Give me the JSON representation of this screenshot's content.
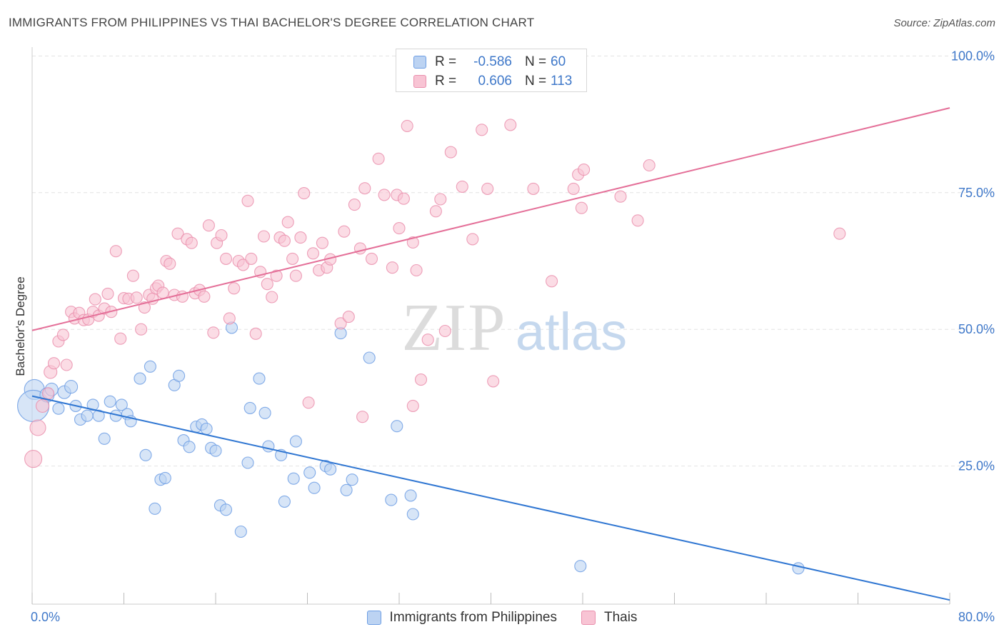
{
  "title": "IMMIGRANTS FROM PHILIPPINES VS THAI BACHELOR'S DEGREE CORRELATION CHART",
  "source": "Source: ZipAtlas.com",
  "watermark": {
    "zip": "ZIP",
    "atlas": "atlas"
  },
  "colors": {
    "blue_fill": "#bcd3f2",
    "blue_stroke": "#6d9ee4",
    "blue_line": "#2f76d2",
    "pink_fill": "#f8c4d4",
    "pink_stroke": "#ea8fad",
    "pink_line": "#e46f98",
    "axis_text": "#3f78c9",
    "grid": "#e2e2e2"
  },
  "legend_top": {
    "rows": [
      {
        "r_label": "R =",
        "r_value": "-0.586",
        "n_label": "N =",
        "n_value": "60"
      },
      {
        "r_label": "R =",
        "r_value": "0.606",
        "n_label": "N =",
        "n_value": "113"
      }
    ]
  },
  "legend_bottom": {
    "items": [
      {
        "label": "Immigrants from Philippines"
      },
      {
        "label": "Thais"
      }
    ]
  },
  "chart_data": {
    "type": "scatter",
    "xlabel": "",
    "ylabel": "Bachelor's Degree",
    "xlim": [
      0,
      80
    ],
    "ylim": [
      0,
      105
    ],
    "x_tick_labels": [
      {
        "value": 0,
        "label": "0.0%"
      },
      {
        "value": 80,
        "label": "80.0%"
      }
    ],
    "y_tick_labels": [
      {
        "value": 25,
        "label": "25.0%"
      },
      {
        "value": 50,
        "label": "50.0%"
      },
      {
        "value": 75,
        "label": "75.0%"
      },
      {
        "value": 100,
        "label": "100.0%"
      }
    ],
    "grid": true,
    "legend_position": "top-center",
    "series": [
      {
        "name": "Immigrants from Philippines",
        "color": "#6d9ee4",
        "trend": {
          "x": [
            0,
            80
          ],
          "y": [
            37.8,
            0.5
          ]
        },
        "points": [
          [
            0.2,
            39.0,
            14
          ],
          [
            0.1,
            36.0,
            22
          ],
          [
            1.3,
            38.0,
            10
          ],
          [
            1.7,
            39.0,
            9
          ],
          [
            2.3,
            35.5,
            8
          ],
          [
            2.8,
            38.5,
            9
          ],
          [
            3.4,
            39.5,
            9
          ],
          [
            3.8,
            36.0,
            8
          ],
          [
            4.2,
            33.5,
            8
          ],
          [
            4.8,
            34.2,
            8
          ],
          [
            5.3,
            36.2,
            8
          ],
          [
            5.8,
            34.2,
            8
          ],
          [
            6.3,
            30.0,
            8
          ],
          [
            6.8,
            36.8,
            8
          ],
          [
            7.3,
            34.2,
            8
          ],
          [
            7.8,
            36.2,
            8
          ],
          [
            8.3,
            34.5,
            8
          ],
          [
            8.6,
            33.2,
            8
          ],
          [
            9.4,
            41.0,
            8
          ],
          [
            9.9,
            27.0,
            8
          ],
          [
            10.3,
            43.2,
            8
          ],
          [
            10.7,
            17.2,
            8
          ],
          [
            11.2,
            22.5,
            8
          ],
          [
            11.6,
            22.8,
            8
          ],
          [
            12.4,
            39.8,
            8
          ],
          [
            12.8,
            41.5,
            8
          ],
          [
            13.2,
            29.7,
            8
          ],
          [
            13.7,
            28.5,
            8
          ],
          [
            14.3,
            32.2,
            8
          ],
          [
            14.8,
            32.6,
            8
          ],
          [
            15.2,
            31.8,
            8
          ],
          [
            15.6,
            28.3,
            8
          ],
          [
            16.0,
            27.8,
            8
          ],
          [
            16.4,
            17.8,
            8
          ],
          [
            16.9,
            17.0,
            8
          ],
          [
            17.4,
            50.3,
            8
          ],
          [
            18.2,
            13.0,
            8
          ],
          [
            18.8,
            25.6,
            8
          ],
          [
            19.0,
            35.6,
            8
          ],
          [
            19.8,
            41.0,
            8
          ],
          [
            20.3,
            34.7,
            8
          ],
          [
            20.6,
            28.6,
            8
          ],
          [
            21.7,
            27.0,
            8
          ],
          [
            22.0,
            18.5,
            8
          ],
          [
            22.8,
            22.7,
            8
          ],
          [
            23.0,
            29.5,
            8
          ],
          [
            24.2,
            23.8,
            8
          ],
          [
            24.6,
            21.0,
            8
          ],
          [
            25.6,
            25.0,
            8
          ],
          [
            26.0,
            24.4,
            8
          ],
          [
            26.9,
            49.3,
            8
          ],
          [
            27.4,
            20.6,
            8
          ],
          [
            27.9,
            22.5,
            8
          ],
          [
            29.4,
            44.8,
            8
          ],
          [
            31.3,
            18.8,
            8
          ],
          [
            31.8,
            32.3,
            8
          ],
          [
            33.0,
            19.6,
            8
          ],
          [
            33.2,
            16.2,
            8
          ],
          [
            47.8,
            6.7,
            8
          ],
          [
            66.8,
            6.3,
            8
          ]
        ]
      },
      {
        "name": "Thais",
        "color": "#ea8fad",
        "trend": {
          "x": [
            0,
            80
          ],
          "y": [
            49.8,
            90.5
          ]
        },
        "points": [
          [
            0.1,
            26.3,
            12
          ],
          [
            0.5,
            32.0,
            11
          ],
          [
            0.9,
            36.0,
            9
          ],
          [
            1.4,
            38.3,
            8
          ],
          [
            1.6,
            42.2,
            9
          ],
          [
            1.9,
            43.8,
            8
          ],
          [
            2.3,
            47.8,
            8
          ],
          [
            2.7,
            49.0,
            8
          ],
          [
            3.0,
            43.5,
            8
          ],
          [
            3.4,
            53.2,
            8
          ],
          [
            3.7,
            52.0,
            8
          ],
          [
            4.1,
            53.0,
            8
          ],
          [
            4.5,
            51.7,
            8
          ],
          [
            4.9,
            51.8,
            8
          ],
          [
            5.3,
            53.2,
            8
          ],
          [
            5.5,
            55.5,
            8
          ],
          [
            5.8,
            52.5,
            8
          ],
          [
            6.3,
            53.8,
            8
          ],
          [
            6.6,
            56.5,
            8
          ],
          [
            6.9,
            53.2,
            8
          ],
          [
            7.3,
            64.3,
            8
          ],
          [
            7.7,
            48.3,
            8
          ],
          [
            8.0,
            55.7,
            8
          ],
          [
            8.4,
            55.6,
            8
          ],
          [
            8.8,
            59.8,
            8
          ],
          [
            9.1,
            55.8,
            8
          ],
          [
            9.5,
            50.0,
            8
          ],
          [
            9.8,
            54.0,
            8
          ],
          [
            10.2,
            56.3,
            8
          ],
          [
            10.5,
            55.6,
            8
          ],
          [
            10.8,
            57.5,
            8
          ],
          [
            11.0,
            58.0,
            8
          ],
          [
            11.4,
            56.7,
            8
          ],
          [
            11.7,
            62.5,
            8
          ],
          [
            12.0,
            62.0,
            8
          ],
          [
            12.4,
            56.3,
            8
          ],
          [
            12.7,
            67.5,
            8
          ],
          [
            13.1,
            56.0,
            8
          ],
          [
            13.5,
            66.5,
            8
          ],
          [
            13.9,
            65.8,
            8
          ],
          [
            14.2,
            56.6,
            8
          ],
          [
            14.6,
            57.2,
            8
          ],
          [
            15.0,
            56.0,
            8
          ],
          [
            15.4,
            69.0,
            8
          ],
          [
            15.8,
            49.4,
            8
          ],
          [
            16.1,
            65.8,
            8
          ],
          [
            16.5,
            67.2,
            8
          ],
          [
            16.9,
            62.9,
            8
          ],
          [
            17.2,
            52.0,
            8
          ],
          [
            17.6,
            57.5,
            8
          ],
          [
            18.0,
            62.5,
            8
          ],
          [
            18.4,
            61.8,
            8
          ],
          [
            18.8,
            73.5,
            8
          ],
          [
            19.1,
            62.9,
            8
          ],
          [
            19.5,
            49.2,
            8
          ],
          [
            19.9,
            60.5,
            8
          ],
          [
            20.2,
            67.0,
            8
          ],
          [
            20.5,
            58.3,
            8
          ],
          [
            20.9,
            55.9,
            8
          ],
          [
            21.3,
            59.8,
            8
          ],
          [
            21.6,
            66.8,
            8
          ],
          [
            22.0,
            66.2,
            8
          ],
          [
            22.3,
            69.6,
            8
          ],
          [
            22.7,
            62.9,
            8
          ],
          [
            23.0,
            59.8,
            8
          ],
          [
            23.4,
            66.8,
            8
          ],
          [
            23.7,
            74.9,
            8
          ],
          [
            24.5,
            63.9,
            8
          ],
          [
            25.0,
            60.8,
            8
          ],
          [
            25.3,
            65.8,
            8
          ],
          [
            25.7,
            61.3,
            8
          ],
          [
            26.0,
            62.8,
            8
          ],
          [
            26.9,
            51.1,
            8
          ],
          [
            27.2,
            67.9,
            8
          ],
          [
            27.6,
            52.3,
            8
          ],
          [
            28.1,
            72.8,
            8
          ],
          [
            28.6,
            64.8,
            8
          ],
          [
            29.0,
            75.8,
            8
          ],
          [
            29.6,
            62.9,
            8
          ],
          [
            30.2,
            81.2,
            8
          ],
          [
            30.7,
            74.6,
            8
          ],
          [
            31.4,
            61.3,
            8
          ],
          [
            31.8,
            74.6,
            8
          ],
          [
            32.0,
            68.5,
            8
          ],
          [
            32.4,
            73.9,
            8
          ],
          [
            32.7,
            87.2,
            8
          ],
          [
            33.2,
            65.9,
            8
          ],
          [
            33.5,
            60.8,
            8
          ],
          [
            33.9,
            40.8,
            8
          ],
          [
            34.5,
            48.1,
            8
          ],
          [
            35.2,
            71.6,
            8
          ],
          [
            35.6,
            73.8,
            8
          ],
          [
            36.0,
            49.7,
            8
          ],
          [
            36.5,
            82.4,
            8
          ],
          [
            37.5,
            76.1,
            8
          ],
          [
            38.4,
            66.5,
            8
          ],
          [
            39.2,
            86.5,
            8
          ],
          [
            39.7,
            75.7,
            8
          ],
          [
            40.2,
            40.5,
            8
          ],
          [
            41.7,
            87.4,
            8
          ],
          [
            43.7,
            75.7,
            8
          ],
          [
            45.3,
            58.8,
            8
          ],
          [
            47.2,
            75.7,
            8
          ],
          [
            47.6,
            78.3,
            8
          ],
          [
            47.9,
            72.2,
            8
          ],
          [
            48.1,
            79.2,
            8
          ],
          [
            51.3,
            74.3,
            8
          ],
          [
            52.8,
            69.9,
            8
          ],
          [
            53.8,
            80.0,
            8
          ],
          [
            70.4,
            67.5,
            8
          ],
          [
            28.8,
            34.0,
            8
          ],
          [
            24.1,
            36.6,
            8
          ],
          [
            33.2,
            36.0,
            8
          ]
        ]
      }
    ]
  }
}
